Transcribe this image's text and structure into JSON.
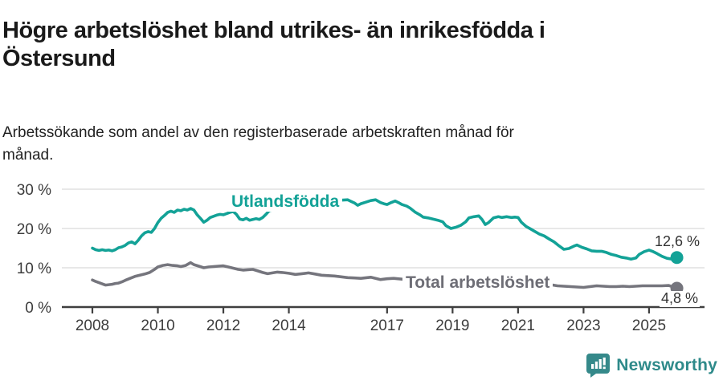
{
  "header": {
    "title": "Högre arbetslöshet bland utrikes- än inrikesfödda i Östersund",
    "subtitle": "Arbetssökande som andel av den registerbaserade arbetskraften månad för månad."
  },
  "colors": {
    "series_foreign": "#13a297",
    "series_total": "#75757d",
    "axis": "#3f3f3f",
    "grid": "#dadada",
    "tick_text": "#3c3c3c",
    "value_text": "#333333",
    "brand_teal": "#2e8a8a",
    "title_text": "#1a1a1a"
  },
  "footer": {
    "brand": "Newsworthy",
    "brand_icon": "speech-bubble-bar-chart-icon"
  },
  "chart_data": {
    "type": "line",
    "title": "Högre arbetslöshet bland utrikes- än inrikesfödda i Östersund",
    "subtitle": "Arbetssökande som andel av den registerbaserade arbetskraften månad för månad.",
    "xlabel": "",
    "ylabel": "",
    "x_range": [
      2007.9,
      2026.6
    ],
    "ylim": [
      0,
      30
    ],
    "grid": "horizontal",
    "legend_position": "inline-labels",
    "x_ticks": [
      2008,
      2010,
      2012,
      2014,
      2017,
      2019,
      2021,
      2023,
      2025
    ],
    "y_ticks": [
      {
        "value": 30,
        "label": "30 %"
      },
      {
        "value": 20,
        "label": "20 %"
      },
      {
        "value": 10,
        "label": "10 %"
      },
      {
        "value": 0,
        "label": "0 %"
      }
    ],
    "series": [
      {
        "name": "Utlandsfödda",
        "color": "#13a297",
        "end_label": "12,6 %",
        "end_value": 12.6,
        "points": [
          [
            2008,
            15
          ],
          [
            2008.1,
            14.6
          ],
          [
            2008.2,
            14.4
          ],
          [
            2008.3,
            14.6
          ],
          [
            2008.4,
            14.4
          ],
          [
            2008.5,
            14.5
          ],
          [
            2008.6,
            14.3
          ],
          [
            2008.7,
            14.6
          ],
          [
            2008.8,
            15.1
          ],
          [
            2008.9,
            15.3
          ],
          [
            2009,
            15.7
          ],
          [
            2009.1,
            16.3
          ],
          [
            2009.2,
            16.6
          ],
          [
            2009.3,
            16.1
          ],
          [
            2009.4,
            17
          ],
          [
            2009.5,
            18.1
          ],
          [
            2009.6,
            18.9
          ],
          [
            2009.7,
            19.2
          ],
          [
            2009.8,
            19
          ],
          [
            2009.9,
            20
          ],
          [
            2010,
            21.5
          ],
          [
            2010.1,
            22.6
          ],
          [
            2010.2,
            23.3
          ],
          [
            2010.3,
            24.1
          ],
          [
            2010.4,
            24.4
          ],
          [
            2010.5,
            24.1
          ],
          [
            2010.6,
            24.7
          ],
          [
            2010.7,
            24.5
          ],
          [
            2010.8,
            24.9
          ],
          [
            2010.9,
            24.7
          ],
          [
            2011,
            25.1
          ],
          [
            2011.1,
            24.7
          ],
          [
            2011.2,
            23.5
          ],
          [
            2011.3,
            22.6
          ],
          [
            2011.4,
            21.6
          ],
          [
            2011.5,
            22.1
          ],
          [
            2011.6,
            22.8
          ],
          [
            2011.7,
            23.1
          ],
          [
            2011.8,
            23.4
          ],
          [
            2011.9,
            23.6
          ],
          [
            2012,
            23.5
          ],
          [
            2012.1,
            23.8
          ],
          [
            2012.2,
            24.1
          ],
          [
            2012.3,
            24.3
          ],
          [
            2012.4,
            23.6
          ],
          [
            2012.5,
            22.4
          ],
          [
            2012.6,
            22.2
          ],
          [
            2012.7,
            22.6
          ],
          [
            2012.8,
            22.1
          ],
          [
            2012.9,
            22.3
          ],
          [
            2013,
            22.5
          ],
          [
            2013.1,
            22.3
          ],
          [
            2013.2,
            22.8
          ],
          [
            2013.3,
            23.6
          ],
          [
            2013.4,
            24.5
          ],
          [
            2013.6,
            24.9
          ],
          [
            2013.8,
            25.1
          ],
          [
            2014,
            25.4
          ],
          [
            2014.2,
            25.7
          ],
          [
            2014.4,
            26
          ],
          [
            2014.6,
            26.3
          ],
          [
            2014.8,
            26.6
          ],
          [
            2015,
            26.9
          ],
          [
            2015.2,
            27
          ],
          [
            2015.4,
            27.1
          ],
          [
            2015.6,
            27.2
          ],
          [
            2015.8,
            27.3
          ],
          [
            2015.9,
            26.9
          ],
          [
            2016,
            26.5
          ],
          [
            2016.1,
            25.9
          ],
          [
            2016.2,
            26.3
          ],
          [
            2016.35,
            26.7
          ],
          [
            2016.5,
            27.1
          ],
          [
            2016.65,
            27.3
          ],
          [
            2016.8,
            26.6
          ],
          [
            2016.9,
            26.3
          ],
          [
            2017,
            26.1
          ],
          [
            2017.1,
            26.5
          ],
          [
            2017.25,
            27
          ],
          [
            2017.35,
            26.6
          ],
          [
            2017.45,
            26.1
          ],
          [
            2017.6,
            25.7
          ],
          [
            2017.7,
            25.2
          ],
          [
            2017.85,
            24.2
          ],
          [
            2018,
            23.5
          ],
          [
            2018.1,
            22.9
          ],
          [
            2018.25,
            22.7
          ],
          [
            2018.4,
            22.4
          ],
          [
            2018.55,
            22.1
          ],
          [
            2018.7,
            21.7
          ],
          [
            2018.8,
            20.7
          ],
          [
            2018.95,
            20
          ],
          [
            2019.1,
            20.3
          ],
          [
            2019.25,
            20.8
          ],
          [
            2019.4,
            21.7
          ],
          [
            2019.5,
            22.7
          ],
          [
            2019.65,
            23
          ],
          [
            2019.8,
            23.2
          ],
          [
            2019.9,
            22.3
          ],
          [
            2020,
            21
          ],
          [
            2020.1,
            21.5
          ],
          [
            2020.25,
            22.7
          ],
          [
            2020.4,
            23
          ],
          [
            2020.5,
            22.8
          ],
          [
            2020.65,
            23
          ],
          [
            2020.8,
            22.8
          ],
          [
            2020.9,
            22.9
          ],
          [
            2021,
            22.8
          ],
          [
            2021.1,
            21.6
          ],
          [
            2021.25,
            20.5
          ],
          [
            2021.4,
            19.8
          ],
          [
            2021.5,
            19.3
          ],
          [
            2021.65,
            18.6
          ],
          [
            2021.8,
            18.1
          ],
          [
            2021.95,
            17.3
          ],
          [
            2022.1,
            16.6
          ],
          [
            2022.25,
            15.6
          ],
          [
            2022.4,
            14.7
          ],
          [
            2022.55,
            14.9
          ],
          [
            2022.7,
            15.5
          ],
          [
            2022.8,
            15.8
          ],
          [
            2022.95,
            15.2
          ],
          [
            2023.1,
            14.8
          ],
          [
            2023.25,
            14.3
          ],
          [
            2023.4,
            14.2
          ],
          [
            2023.55,
            14.2
          ],
          [
            2023.7,
            13.9
          ],
          [
            2023.85,
            13.4
          ],
          [
            2024,
            13.1
          ],
          [
            2024.15,
            12.7
          ],
          [
            2024.3,
            12.5
          ],
          [
            2024.45,
            12.2
          ],
          [
            2024.6,
            12.5
          ],
          [
            2024.7,
            13.4
          ],
          [
            2024.85,
            14.1
          ],
          [
            2025,
            14.5
          ],
          [
            2025.1,
            14.2
          ],
          [
            2025.25,
            13.6
          ],
          [
            2025.4,
            12.9
          ],
          [
            2025.55,
            12.4
          ],
          [
            2025.7,
            12.2
          ],
          [
            2025.85,
            12.6
          ]
        ]
      },
      {
        "name": "Total arbetslöshet",
        "color": "#75757d",
        "end_label": "4,8 %",
        "end_value": 4.8,
        "points": [
          [
            2008,
            6.9
          ],
          [
            2008.1,
            6.5
          ],
          [
            2008.2,
            6.2
          ],
          [
            2008.3,
            5.9
          ],
          [
            2008.4,
            5.6
          ],
          [
            2008.5,
            5.7
          ],
          [
            2008.6,
            5.8
          ],
          [
            2008.7,
            6
          ],
          [
            2008.8,
            6.1
          ],
          [
            2008.9,
            6.4
          ],
          [
            2009,
            6.8
          ],
          [
            2009.15,
            7.3
          ],
          [
            2009.3,
            7.8
          ],
          [
            2009.45,
            8.1
          ],
          [
            2009.6,
            8.4
          ],
          [
            2009.75,
            8.8
          ],
          [
            2009.9,
            9.6
          ],
          [
            2010,
            10.2
          ],
          [
            2010.15,
            10.6
          ],
          [
            2010.3,
            10.8
          ],
          [
            2010.45,
            10.6
          ],
          [
            2010.6,
            10.5
          ],
          [
            2010.7,
            10.3
          ],
          [
            2010.85,
            10.6
          ],
          [
            2011,
            11.3
          ],
          [
            2011.1,
            10.8
          ],
          [
            2011.25,
            10.4
          ],
          [
            2011.4,
            10
          ],
          [
            2011.55,
            10.2
          ],
          [
            2011.7,
            10.3
          ],
          [
            2011.85,
            10.4
          ],
          [
            2012,
            10.5
          ],
          [
            2012.15,
            10.2
          ],
          [
            2012.3,
            9.9
          ],
          [
            2012.45,
            9.6
          ],
          [
            2012.6,
            9.4
          ],
          [
            2012.75,
            9.5
          ],
          [
            2012.9,
            9.6
          ],
          [
            2013.05,
            9.2
          ],
          [
            2013.2,
            8.8
          ],
          [
            2013.35,
            8.5
          ],
          [
            2013.5,
            8.7
          ],
          [
            2013.65,
            8.9
          ],
          [
            2013.8,
            8.8
          ],
          [
            2014,
            8.6
          ],
          [
            2014.2,
            8.3
          ],
          [
            2014.4,
            8.5
          ],
          [
            2014.6,
            8.7
          ],
          [
            2014.8,
            8.4
          ],
          [
            2015,
            8.1
          ],
          [
            2015.2,
            8
          ],
          [
            2015.4,
            7.9
          ],
          [
            2015.6,
            7.7
          ],
          [
            2015.8,
            7.5
          ],
          [
            2016,
            7.4
          ],
          [
            2016.2,
            7.3
          ],
          [
            2016.5,
            7.6
          ],
          [
            2016.8,
            7
          ],
          [
            2017,
            7.2
          ],
          [
            2017.2,
            7.3
          ],
          [
            2017.45,
            7.1
          ],
          [
            2017.7,
            6.9
          ],
          [
            2018,
            6.7
          ],
          [
            2018.3,
            6.5
          ],
          [
            2018.6,
            6.4
          ],
          [
            2019,
            6.2
          ],
          [
            2019.4,
            6.3
          ],
          [
            2019.8,
            6.5
          ],
          [
            2020.2,
            7.1
          ],
          [
            2020.5,
            7.2
          ],
          [
            2020.8,
            7
          ],
          [
            2021,
            6.8
          ],
          [
            2021.3,
            6.4
          ],
          [
            2021.6,
            6.1
          ],
          [
            2022,
            5.7
          ],
          [
            2022.2,
            5.4
          ],
          [
            2022.4,
            5.3
          ],
          [
            2022.6,
            5.2
          ],
          [
            2022.8,
            5.1
          ],
          [
            2023,
            5
          ],
          [
            2023.2,
            5.2
          ],
          [
            2023.4,
            5.4
          ],
          [
            2023.6,
            5.3
          ],
          [
            2023.8,
            5.2
          ],
          [
            2024,
            5.2
          ],
          [
            2024.2,
            5.3
          ],
          [
            2024.4,
            5.2
          ],
          [
            2024.6,
            5.3
          ],
          [
            2024.8,
            5.4
          ],
          [
            2025,
            5.4
          ],
          [
            2025.2,
            5.4
          ],
          [
            2025.4,
            5.4
          ],
          [
            2025.6,
            5.5
          ],
          [
            2025.85,
            4.8
          ]
        ]
      }
    ]
  }
}
